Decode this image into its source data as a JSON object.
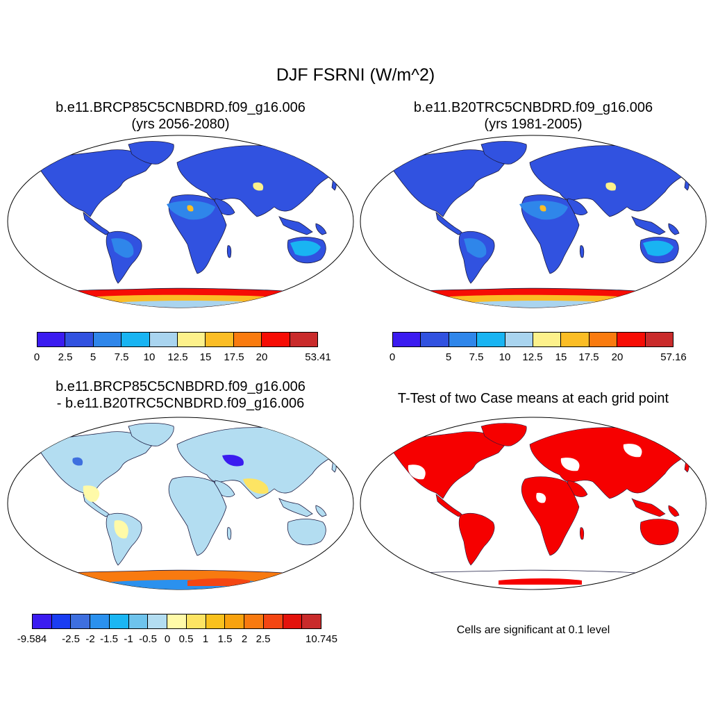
{
  "title": "DJF FSRNI (W/m^2)",
  "panels": [
    {
      "title_line1": "b.e11.BRCP85C5CNBDRD.f09_g16.006",
      "title_line2": "(yrs 2056-2080)"
    },
    {
      "title_line1": "b.e11.B20TRC5CNBDRD.f09_g16.006",
      "title_line2": "(yrs 1981-2005)"
    },
    {
      "title_line1": "b.e11.BRCP85C5CNBDRD.f09_g16.006",
      "title_line2": "- b.e11.B20TRC5CNBDRD.f09_g16.006"
    },
    {
      "title_line1": "T-Test of two Case means at each grid point"
    }
  ],
  "colorbars": {
    "case1": {
      "colors": [
        "#3b1cf0",
        "#3152e0",
        "#2f86ea",
        "#19b4f2",
        "#a9d4ef",
        "#fdf18b",
        "#fbbd25",
        "#f97b0f",
        "#f60d05",
        "#c92b2b"
      ],
      "labels": [
        "0",
        "2.5",
        "5",
        "7.5",
        "10",
        "12.5",
        "15",
        "17.5",
        "20",
        "53.41"
      ]
    },
    "case2": {
      "colors": [
        "#3b1cf0",
        "#3152e0",
        "#2f86ea",
        "#19b4f2",
        "#a9d4ef",
        "#fdf18b",
        "#fbbd25",
        "#f97b0f",
        "#f60d05",
        "#c92b2b"
      ],
      "labels": [
        "0",
        "5",
        "7.5",
        "10",
        "12.5",
        "15",
        "17.5",
        "20",
        "57.16"
      ]
    },
    "diff": {
      "colors": [
        "#3b1cf0",
        "#1a3df2",
        "#3e6fdf",
        "#2b91ee",
        "#1bb6f3",
        "#6ec3ec",
        "#b3ddf1",
        "#fffaa8",
        "#fde463",
        "#f9c11d",
        "#f8a20e",
        "#f87a10",
        "#f44613",
        "#e3130c",
        "#c92b2b"
      ],
      "labels": [
        "-9.584",
        "-2.5",
        "-2",
        "-1.5",
        "-1",
        "-0.5",
        "0",
        "0.5",
        "1",
        "1.5",
        "2",
        "2.5",
        "10.745"
      ]
    }
  },
  "ttest_note": "Cells are significant at 0.1 level"
}
